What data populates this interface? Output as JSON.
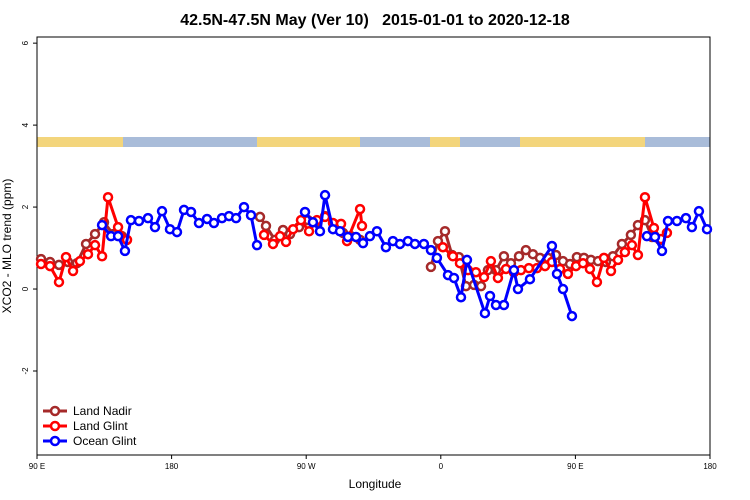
{
  "chart_data": {
    "type": "line",
    "title": "42.5N-47.5N May (Ver 10)   2015-01-01 to 2020-12-18",
    "x_label": "Longitude",
    "y_label": "XCO2 - MLO trend (ppm)",
    "xlim": [
      90,
      540
    ],
    "xticks": [
      {
        "value": 90,
        "label": "90 E"
      },
      {
        "value": 180,
        "label": "180"
      },
      {
        "value": 270,
        "label": "90 W"
      },
      {
        "value": 360,
        "label": "0"
      },
      {
        "value": 450,
        "label": "90 E"
      },
      {
        "value": 540,
        "label": "180"
      }
    ],
    "ylim": [
      -4.05,
      6.15
    ],
    "yticks": [
      -2,
      0,
      2,
      4,
      6
    ],
    "legend": "bottomleft",
    "series": [
      {
        "name": "Land Nadir",
        "color": "#a52a2a",
        "x": [
          92.7,
          98.7,
          104.7,
          110.7,
          116.7,
          122.8,
          128.8,
          134.8,
          140.8,
          146.8,
          null,
          239.1,
          243.1,
          249.1,
          254.5,
          259.2,
          265.2,
          271.2,
          276.5,
          282.6,
          288.6,
          294.6,
          299.9,
          306.0,
          null,
          353.4,
          358.1,
          362.8,
          367.5,
          372.1,
          376.8,
          382.2,
          386.9,
          391.5,
          396.9,
          402.2,
          406.9,
          412.3,
          416.9,
          421.6,
          426.3,
          431.7,
          437.0,
          441.7,
          446.4,
          451.0,
          455.7,
          460.4,
          465.1,
          470.4,
          475.1,
          481.1,
          487.1,
          491.8,
          496.5,
          501.2,
          506.5
        ],
        "values": [
          0.73,
          0.66,
          0.59,
          0.66,
          0.63,
          1.1,
          1.34,
          1.63,
          1.34,
          1.29,
          null,
          1.76,
          1.54,
          1.2,
          1.44,
          1.34,
          1.51,
          1.68,
          1.63,
          1.78,
          1.59,
          1.37,
          1.29,
          1.2,
          null,
          0.54,
          1.17,
          1.41,
          0.83,
          0.78,
          0.07,
          0.1,
          0.07,
          0.46,
          0.46,
          0.8,
          0.63,
          0.8,
          0.95,
          0.85,
          0.76,
          0.76,
          0.83,
          0.68,
          0.61,
          0.78,
          0.76,
          0.71,
          0.68,
          0.66,
          0.8,
          1.1,
          1.32,
          1.56,
          1.68,
          1.27,
          1.2
        ]
      },
      {
        "name": "Land Glint",
        "color": "#ff0000",
        "x": [
          92.7,
          98.7,
          104.7,
          109.4,
          114.1,
          118.7,
          124.1,
          128.8,
          133.5,
          137.5,
          144.2,
          150.2,
          null,
          241.8,
          247.8,
          252.5,
          256.5,
          261.2,
          266.5,
          271.9,
          277.2,
          282.6,
          287.9,
          293.3,
          297.3,
          306.0,
          307.3,
          null,
          361.4,
          368.1,
          372.8,
          378.2,
          383.5,
          388.9,
          393.5,
          398.2,
          403.6,
          408.9,
          413.6,
          418.9,
          424.3,
          429.7,
          434.3,
          439.7,
          445.0,
          450.4,
          455.1,
          459.7,
          464.4,
          469.1,
          473.8,
          478.5,
          483.1,
          487.8,
          491.8,
          496.5,
          502.5,
          507.2,
          511.2
        ],
        "values": [
          0.61,
          0.56,
          0.17,
          0.78,
          0.44,
          0.68,
          0.85,
          1.07,
          0.8,
          2.24,
          1.51,
          1.2,
          null,
          1.32,
          1.1,
          1.29,
          1.15,
          1.46,
          1.68,
          1.41,
          1.68,
          1.76,
          1.61,
          1.59,
          1.17,
          1.95,
          1.54,
          null,
          1.02,
          0.8,
          0.63,
          0.46,
          0.41,
          0.29,
          0.68,
          0.27,
          0.49,
          0.41,
          0.46,
          0.51,
          0.51,
          0.56,
          0.66,
          0.49,
          0.37,
          0.56,
          0.63,
          0.49,
          0.17,
          0.76,
          0.44,
          0.71,
          0.9,
          1.07,
          0.83,
          2.24,
          1.49,
          1.22,
          1.37
        ]
      },
      {
        "name": "Ocean Glint",
        "color": "#0000ff",
        "x": [
          133.5,
          139.5,
          144.2,
          148.8,
          152.8,
          158.2,
          164.2,
          168.9,
          173.6,
          178.9,
          183.6,
          188.3,
          193.0,
          198.3,
          203.7,
          208.3,
          213.7,
          218.4,
          223.1,
          228.4,
          233.1,
          237.1,
          null,
          269.2,
          274.5,
          279.2,
          282.6,
          287.9,
          292.6,
          297.9,
          303.3,
          308.0,
          312.6,
          317.3,
          323.3,
          328.0,
          332.7,
          338.0,
          342.7,
          348.7,
          353.4,
          357.4,
          364.8,
          368.8,
          373.5,
          377.5,
          389.5,
          392.9,
          396.9,
          402.2,
          408.9,
          411.6,
          419.6,
          434.3,
          437.7,
          441.7,
          447.7,
          null,
          497.8,
          503.2,
          507.9,
          511.9,
          517.9,
          523.9,
          527.9,
          532.6,
          538.0
        ],
        "values": [
          1.56,
          1.29,
          1.29,
          0.93,
          1.68,
          1.66,
          1.73,
          1.51,
          1.9,
          1.46,
          1.39,
          1.93,
          1.88,
          1.61,
          1.71,
          1.61,
          1.73,
          1.78,
          1.73,
          2.0,
          1.8,
          1.07,
          null,
          1.88,
          1.63,
          1.41,
          2.29,
          1.46,
          1.41,
          1.27,
          1.27,
          1.12,
          1.29,
          1.41,
          1.02,
          1.17,
          1.1,
          1.17,
          1.1,
          1.1,
          0.95,
          0.76,
          0.34,
          0.27,
          -0.2,
          0.71,
          -0.59,
          -0.17,
          -0.39,
          -0.39,
          0.46,
          0.0,
          0.24,
          1.05,
          0.37,
          0.0,
          -0.66,
          null,
          1.29,
          1.27,
          0.93,
          1.66,
          1.66,
          1.73,
          1.51,
          1.9,
          1.46
        ]
      }
    ]
  }
}
